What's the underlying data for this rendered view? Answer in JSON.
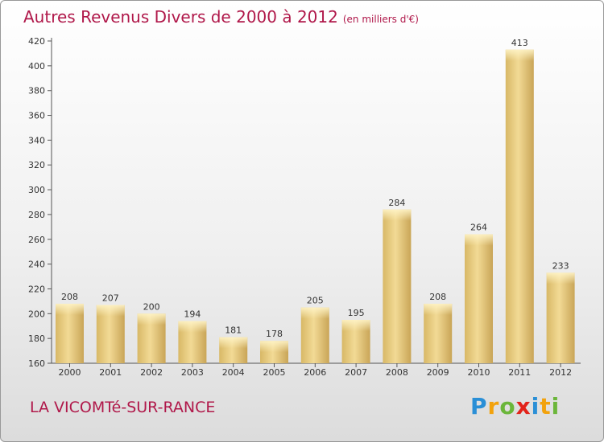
{
  "title": "Autres Revenus Divers de 2000 à 2012",
  "subtitle": "(en milliers d'€)",
  "commune": "LA VICOMTé-SUR-RANCE",
  "logo": {
    "letters": [
      {
        "ch": "P",
        "color": "#2a8fd6"
      },
      {
        "ch": "r",
        "color": "#f2a20c"
      },
      {
        "ch": "o",
        "color": "#6bb63a"
      },
      {
        "ch": "x",
        "color": "#e2231a"
      },
      {
        "ch": "i",
        "color": "#2a8fd6"
      },
      {
        "ch": "t",
        "color": "#f2a20c"
      },
      {
        "ch": "i",
        "color": "#6bb63a"
      }
    ]
  },
  "chart_data": {
    "type": "bar",
    "title": "Autres Revenus Divers de 2000 à 2012",
    "subtitle": "(en milliers d'€)",
    "categories": [
      "2000",
      "2001",
      "2002",
      "2003",
      "2004",
      "2005",
      "2006",
      "2007",
      "2008",
      "2009",
      "2010",
      "2011",
      "2012"
    ],
    "values": [
      208,
      207,
      200,
      194,
      181,
      178,
      205,
      195,
      284,
      208,
      264,
      413,
      233
    ],
    "ylim": [
      160,
      420
    ],
    "yticks": [
      160,
      180,
      200,
      220,
      240,
      260,
      280,
      300,
      320,
      340,
      360,
      380,
      400,
      420
    ],
    "grid": false,
    "bar_color": "#e8cc7e"
  }
}
